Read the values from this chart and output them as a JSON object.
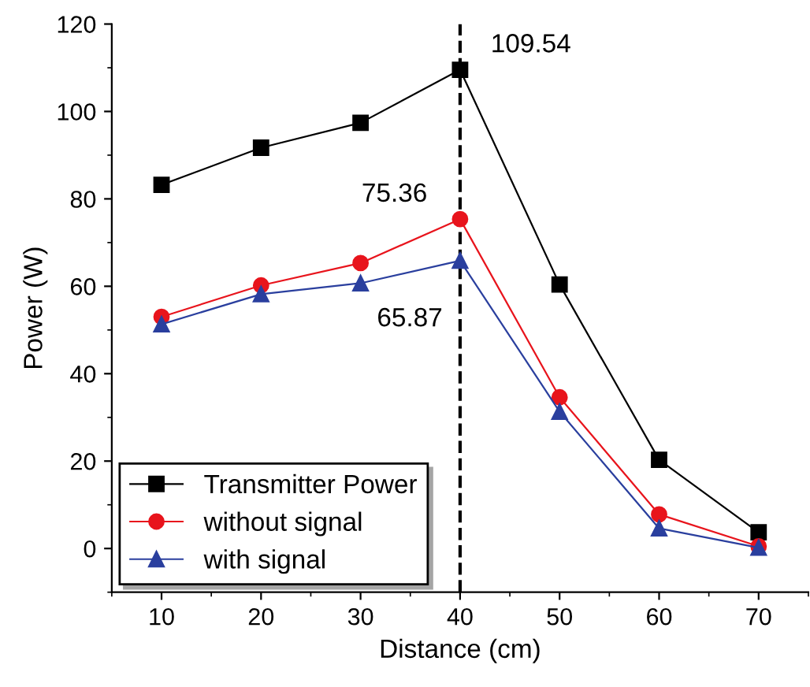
{
  "chart_data": {
    "type": "line",
    "xlabel": "Distance (cm)",
    "ylabel": "Power (W)",
    "x": [
      10,
      20,
      30,
      40,
      50,
      60,
      70
    ],
    "series": [
      {
        "name": "Transmitter Power",
        "color": "#000000",
        "marker": "square",
        "values": [
          83.2,
          91.7,
          97.4,
          109.54,
          60.4,
          20.3,
          3.7
        ],
        "value_labels": [
          null,
          null,
          null,
          "109.54",
          null,
          null,
          null
        ]
      },
      {
        "name": "without signal",
        "color": "#e8141c",
        "marker": "circle",
        "values": [
          53.0,
          60.2,
          65.3,
          75.36,
          34.6,
          7.8,
          0.5
        ],
        "value_labels": [
          null,
          null,
          null,
          "75.36",
          null,
          null,
          null
        ]
      },
      {
        "name": "with signal",
        "color": "#2a3f9e",
        "marker": "triangle",
        "values": [
          51.3,
          58.2,
          60.7,
          65.87,
          31.3,
          4.6,
          0.2
        ],
        "value_labels": [
          null,
          null,
          null,
          "65.87",
          null,
          null,
          null
        ]
      }
    ],
    "xlim": [
      5,
      75
    ],
    "xticks": [
      10,
      20,
      30,
      40,
      50,
      60,
      70
    ],
    "ylim": [
      -10,
      120
    ],
    "yticks": [
      0,
      20,
      40,
      60,
      80,
      100,
      120
    ],
    "ref_lines": [
      {
        "axis": "x",
        "value": 40,
        "color": "#000000",
        "line_style": "dashed"
      }
    ],
    "grid": false,
    "legend": "bottom left",
    "line_style": "solid"
  }
}
